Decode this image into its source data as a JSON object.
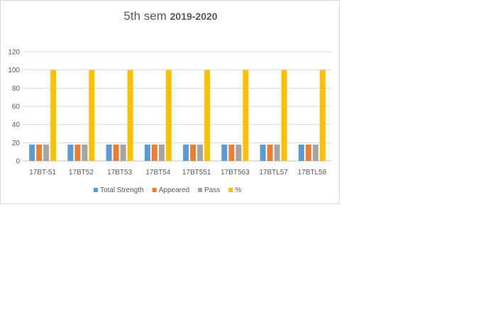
{
  "title": {
    "prefix": "5th sem",
    "bold": "2019-2020"
  },
  "colors": {
    "Total Strength": "#5b9bd5",
    "Appeared": "#ed7d31",
    "Pass": "#a5a5a5",
    "%": "#ffc000"
  },
  "chart_data": {
    "type": "bar",
    "categories": [
      "17BT-51",
      "17BT52",
      "17BT53",
      "17BT54",
      "17BT551",
      "17BT563",
      "17BTL57",
      "17BTL58"
    ],
    "series": [
      {
        "name": "Total Strength",
        "values": [
          18,
          18,
          18,
          18,
          18,
          18,
          18,
          18
        ]
      },
      {
        "name": "Appeared",
        "values": [
          18,
          18,
          18,
          18,
          18,
          18,
          18,
          18
        ]
      },
      {
        "name": "Pass",
        "values": [
          18,
          18,
          18,
          18,
          18,
          18,
          18,
          18
        ]
      },
      {
        "name": "%",
        "values": [
          100,
          100,
          100,
          100,
          100,
          100,
          100,
          100
        ]
      }
    ],
    "ylim": [
      0,
      120
    ],
    "yticks": [
      "0",
      "20",
      "40",
      "60",
      "80",
      "100",
      "120"
    ],
    "grid": true,
    "legend": "bottom"
  }
}
